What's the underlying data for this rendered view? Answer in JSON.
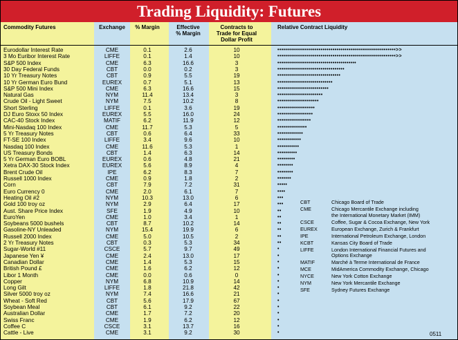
{
  "title": "Trading Liquidity: Futures",
  "headers": {
    "commodity": "Commodity Futures",
    "exchange": "Exchange",
    "margin": "% Margin",
    "effective": [
      "Effective",
      "% Margin"
    ],
    "contracts": [
      "Contracts to",
      "Trade for Equal",
      "Dollar Profit"
    ],
    "liquidity": "Relative Contract Liquidity"
  },
  "rows": [
    {
      "name": "Eurodollar Interest Rate",
      "exchange": "CME",
      "margin": "0.1",
      "effective": "2.6",
      "contracts": "10",
      "dots": 65
    },
    {
      "name": "3 Mo Euribor Interest Rate",
      "exchange": "LIFFE",
      "margin": "0.1",
      "effective": "1.4",
      "contracts": "10",
      "dots": 65
    },
    {
      "name": "S&P 500 Index",
      "exchange": "CME",
      "margin": "6.3",
      "effective": "16.6",
      "contracts": "3",
      "dots": 40
    },
    {
      "name": "30 Day Federal Funds",
      "exchange": "CBT",
      "margin": "0.0",
      "effective": "0.2",
      "contracts": "3",
      "dots": 34
    },
    {
      "name": "10 Yr Treasury Notes",
      "exchange": "CBT",
      "margin": "0.9",
      "effective": "5.5",
      "contracts": "19",
      "dots": 32
    },
    {
      "name": "10 Yr German Euro Bund",
      "exchange": "EUREX",
      "margin": "0.7",
      "effective": "5.1",
      "contracts": "13",
      "dots": 28
    },
    {
      "name": "S&P 500 Mini Index",
      "exchange": "CME",
      "margin": "6.3",
      "effective": "16.6",
      "contracts": "15",
      "dots": 26
    },
    {
      "name": "Natural Gas",
      "exchange": "NYM",
      "margin": "11.4",
      "effective": "13.4",
      "contracts": "3",
      "dots": 23
    },
    {
      "name": "Crude Oil - Light Sweet",
      "exchange": "NYM",
      "margin": "7.5",
      "effective": "10.2",
      "contracts": "8",
      "dots": 21
    },
    {
      "name": "Short Sterling",
      "exchange": "LIFFE",
      "margin": "0.1",
      "effective": "3.6",
      "contracts": "19",
      "dots": 19
    },
    {
      "name": "DJ Euro Stoxx 50 Index",
      "exchange": "EUREX",
      "margin": "5.5",
      "effective": "16.0",
      "contracts": "24",
      "dots": 18
    },
    {
      "name": "CAC-40 Stock Index",
      "exchange": "MATIF",
      "margin": "6.2",
      "effective": "11.9",
      "contracts": "12",
      "dots": 17
    },
    {
      "name": "Mini-Nasdaq 100 Index",
      "exchange": "CME",
      "margin": "11.7",
      "effective": "5.3",
      "contracts": "5",
      "dots": 15
    },
    {
      "name": "5 Yr Treasury Notes",
      "exchange": "CBT",
      "margin": "0.6",
      "effective": "6.4",
      "contracts": "33",
      "dots": 13
    },
    {
      "name": "FT-SE 100 Index",
      "exchange": "LIFFE",
      "margin": "3.4",
      "effective": "9.6",
      "contracts": "10",
      "dots": 12
    },
    {
      "name": "Nasdaq 100 Index",
      "exchange": "CME",
      "margin": "11.6",
      "effective": "5.3",
      "contracts": "1",
      "dots": 11
    },
    {
      "name": "US Treasury Bonds",
      "exchange": "CBT",
      "margin": "1.4",
      "effective": "6.3",
      "contracts": "14",
      "dots": 10
    },
    {
      "name": "5 Yr German Euro BOBL",
      "exchange": "EUREX",
      "margin": "0.6",
      "effective": "4.8",
      "contracts": "21",
      "dots": 9
    },
    {
      "name": "Xetra DAX-30 Stock Index",
      "exchange": "EUREX",
      "margin": "5.6",
      "effective": "8.9",
      "contracts": "4",
      "dots": 8
    },
    {
      "name": "Brent Crude Oil",
      "exchange": "IPE",
      "margin": "6.2",
      "effective": "8.3",
      "contracts": "7",
      "dots": 8
    },
    {
      "name": "Russell 1000 Index",
      "exchange": "CME",
      "margin": "0.9",
      "effective": "1.8",
      "contracts": "2",
      "dots": 7
    },
    {
      "name": "Corn",
      "exchange": "CBT",
      "margin": "7.9",
      "effective": "7.2",
      "contracts": "31",
      "dots": 5
    },
    {
      "name": "Euro Currency 0",
      "exchange": "CME",
      "margin": "2.0",
      "effective": "6.1",
      "contracts": "7",
      "dots": 4
    },
    {
      "name": "Heating Oil #2",
      "exchange": "NYM",
      "margin": "10.3",
      "effective": "13.0",
      "contracts": "6",
      "dots": 3
    },
    {
      "name": "Gold 100 troy oz",
      "exchange": "NYM",
      "margin": "2.9",
      "effective": "6.4",
      "contracts": "17",
      "dots": 3
    },
    {
      "name": "Aust. Share Price Index",
      "exchange": "SFE",
      "margin": "1.9",
      "effective": "4.9",
      "contracts": "10",
      "dots": 2
    },
    {
      "name": "EuroYen",
      "exchange": "CME",
      "margin": "1.0",
      "effective": "3.4",
      "contracts": "1",
      "dots": 2
    },
    {
      "name": "Soybeans 5000 bushels",
      "exchange": "CBT",
      "margin": "8.7",
      "effective": "10.2",
      "contracts": "14",
      "dots": 2
    },
    {
      "name": "Gasoline-NY Unleaded",
      "exchange": "NYM",
      "margin": "15.4",
      "effective": "19.9",
      "contracts": "6",
      "dots": 2
    },
    {
      "name": "Russell 2000 Index",
      "exchange": "CME",
      "margin": "5.0",
      "effective": "10.5",
      "contracts": "2",
      "dots": 2
    },
    {
      "name": "2 Yr Treasury Notes",
      "exchange": "CBT",
      "margin": "0.3",
      "effective": "5.3",
      "contracts": "34",
      "dots": 2
    },
    {
      "name": "Sugar-World #11",
      "exchange": "CSCE",
      "margin": "5.7",
      "effective": "9.7",
      "contracts": "49",
      "dots": 1
    },
    {
      "name": "Japanese Yen ¥",
      "exchange": "CME",
      "margin": "2.4",
      "effective": "13.0",
      "contracts": "17",
      "dots": 1
    },
    {
      "name": "Canadian Dollar",
      "exchange": "CME",
      "margin": "1.4",
      "effective": "5.3",
      "contracts": "15",
      "dots": 1
    },
    {
      "name": "British Pound £",
      "exchange": "CME",
      "margin": "1.6",
      "effective": "6.2",
      "contracts": "12",
      "dots": 1
    },
    {
      "name": "Libor 1 Month",
      "exchange": "CME",
      "margin": "0.0",
      "effective": "0.6",
      "contracts": "0",
      "dots": 1
    },
    {
      "name": "Copper",
      "exchange": "NYM",
      "margin": "6.8",
      "effective": "10.9",
      "contracts": "14",
      "dots": 1
    },
    {
      "name": "Long Gilt",
      "exchange": "LIFFE",
      "margin": "1.8",
      "effective": "21.8",
      "contracts": "42",
      "dots": 1
    },
    {
      "name": "Silver 5000 troy oz",
      "exchange": "NYM",
      "margin": "7.4",
      "effective": "16.6",
      "contracts": "21",
      "dots": 1
    },
    {
      "name": "Wheat - Soft Red",
      "exchange": "CBT",
      "margin": "5.6",
      "effective": "17.9",
      "contracts": "67",
      "dots": 1
    },
    {
      "name": "Soybean Meal",
      "exchange": "CBT",
      "margin": "6.1",
      "effective": "9.2",
      "contracts": "22",
      "dots": 1
    },
    {
      "name": "Australian Dollar",
      "exchange": "CME",
      "margin": "1.7",
      "effective": "7.2",
      "contracts": "20",
      "dots": 1
    },
    {
      "name": "Swiss Franc",
      "exchange": "CME",
      "margin": "1.9",
      "effective": "6.2",
      "contracts": "12",
      "dots": 1
    },
    {
      "name": "Coffee C",
      "exchange": "CSCE",
      "margin": "3.1",
      "effective": "13.7",
      "contracts": "16",
      "dots": 1
    },
    {
      "name": "Cattle - Live",
      "exchange": "CME",
      "margin": "3.1",
      "effective": "9.2",
      "contracts": "30",
      "dots": 1
    }
  ],
  "legend": [
    {
      "code": "CBT",
      "lines": [
        "Chicago Board of Trade"
      ]
    },
    {
      "code": "CME",
      "lines": [
        "Chicago Mercantile Exchange including",
        "the International Monetary Market (IMM)"
      ]
    },
    {
      "code": "CSCE",
      "lines": [
        "Coffee, Sugar & Cocoa Exchange, New York"
      ]
    },
    {
      "code": "EUREX",
      "lines": [
        "European Exchange, Zurich & Frankfurt"
      ]
    },
    {
      "code": "IPE",
      "lines": [
        "International Petroleum Exchange, London"
      ]
    },
    {
      "code": "KCBT",
      "lines": [
        "Kansas City Board of Trade"
      ]
    },
    {
      "code": "LIFFE",
      "lines": [
        "London International Financial Futures and",
        "Options Exchange"
      ]
    },
    {
      "code": "MATIF",
      "lines": [
        "Marché à Terme International de France"
      ]
    },
    {
      "code": "MCE",
      "lines": [
        "MidAmerica Commodity Exchange, Chicago"
      ]
    },
    {
      "code": "NYCE",
      "lines": [
        "New York Cotton Exchange"
      ]
    },
    {
      "code": "NYM",
      "lines": [
        "New York Mercantile Exchange"
      ]
    },
    {
      "code": "SFE",
      "lines": [
        "Sydney Futures Exchange"
      ]
    }
  ],
  "footer_code": "0511",
  "colors": {
    "title_bg": "#d01f2a",
    "paper": "#f4f39c",
    "shade": "#c6e0f0"
  }
}
